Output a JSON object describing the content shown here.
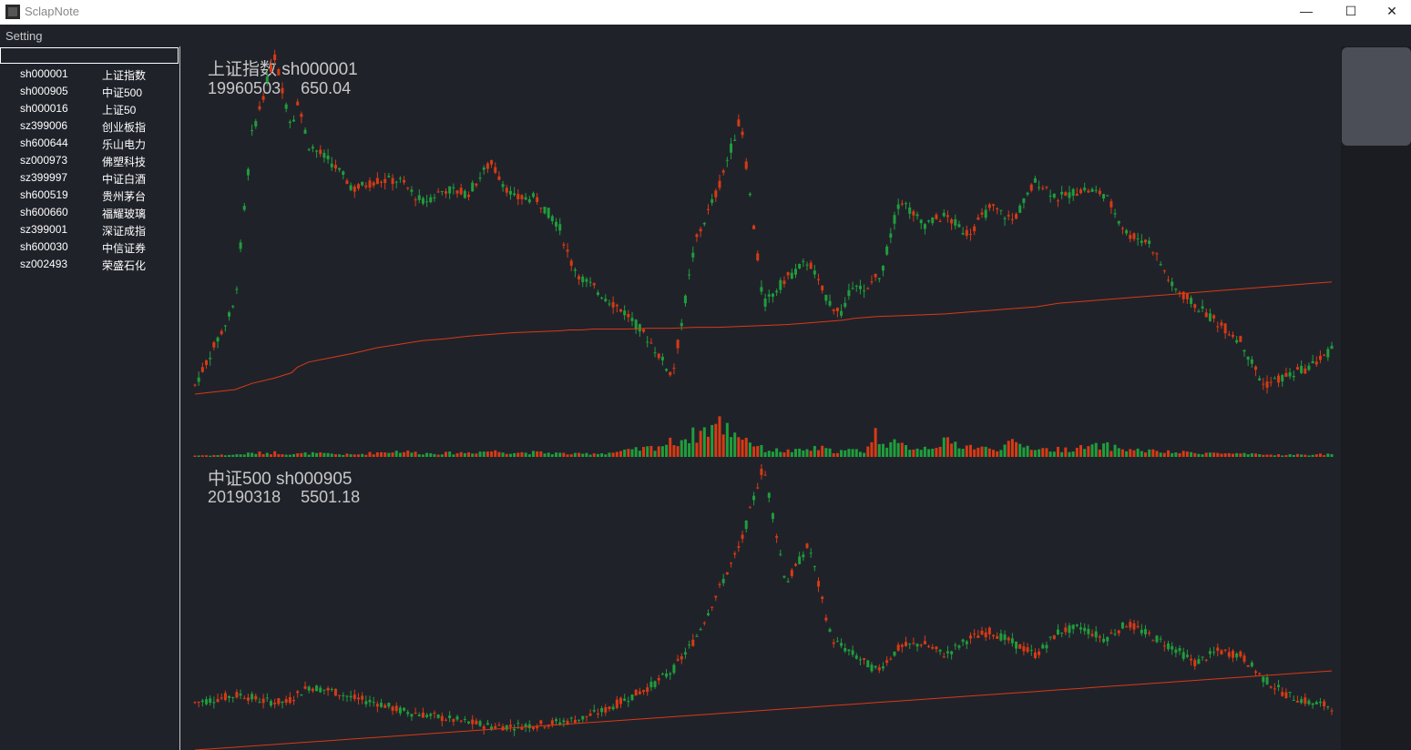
{
  "window": {
    "title": "SclapNote",
    "controls": [
      "—",
      "☐",
      "✕"
    ]
  },
  "menu": {
    "setting": "Setting"
  },
  "search": {
    "value": "",
    "placeholder": ""
  },
  "stocks": [
    {
      "code": "sh000001",
      "name": "上证指数"
    },
    {
      "code": "sh000905",
      "name": "中证500"
    },
    {
      "code": "sh000016",
      "name": "上证50"
    },
    {
      "code": "sz399006",
      "name": "创业板指"
    },
    {
      "code": "sh600644",
      "name": "乐山电力"
    },
    {
      "code": "sz000973",
      "name": "佛塑科技"
    },
    {
      "code": "sz399997",
      "name": "中证白酒"
    },
    {
      "code": "sh600519",
      "name": "贵州茅台"
    },
    {
      "code": "sh600660",
      "name": "福耀玻璃"
    },
    {
      "code": "sz399001",
      "name": "深证成指"
    },
    {
      "code": "sh600030",
      "name": "中信证券"
    },
    {
      "code": "sz002493",
      "name": "荣盛石化"
    }
  ],
  "colors": {
    "up": "#d83a14",
    "down": "#1f9e3c",
    "ma": "#d83a14",
    "text": "#c8c8c8",
    "background": "#20222a"
  },
  "charts": [
    {
      "title": "上证指数 sh000001",
      "date": "19960503",
      "price": "650.04"
    },
    {
      "title": "中证500 sh000905",
      "date": "20190318",
      "price": "5501.18"
    }
  ],
  "chart_data": [
    {
      "type": "candlestick",
      "title": "上证指数 sh000001",
      "x_label": "",
      "y_label": "",
      "x": [
        0,
        0.035,
        0.05,
        0.07,
        0.085,
        0.09,
        0.1,
        0.12,
        0.14,
        0.16,
        0.18,
        0.2,
        0.22,
        0.24,
        0.26,
        0.28,
        0.3,
        0.32,
        0.33,
        0.34,
        0.35,
        0.36,
        0.38,
        0.4,
        0.42,
        0.44,
        0.46,
        0.48,
        0.5,
        0.52,
        0.53,
        0.54,
        0.55,
        0.56,
        0.57,
        0.58,
        0.59,
        0.6,
        0.6,
        0.62,
        0.64,
        0.66,
        0.68,
        0.7,
        0.72,
        0.74,
        0.75,
        0.76,
        0.78,
        0.8,
        0.82,
        0.84,
        0.86,
        0.88,
        0.9,
        0.92,
        0.94,
        0.96,
        0.98,
        1.0
      ],
      "price": [
        10,
        100,
        290,
        380,
        300,
        330,
        280,
        260,
        230,
        240,
        240,
        215,
        230,
        225,
        260,
        220,
        220,
        190,
        150,
        130,
        120,
        110,
        90,
        60,
        20,
        170,
        230,
        310,
        100,
        130,
        140,
        150,
        120,
        100,
        90,
        130,
        110,
        140,
        115,
        220,
        190,
        200,
        180,
        210,
        195,
        240,
        230,
        220,
        230,
        225,
        180,
        170,
        120,
        100,
        80,
        60,
        10,
        20,
        30,
        50
      ],
      "ma": [
        0,
        5,
        12,
        18,
        24,
        30,
        36,
        41,
        46,
        52,
        56,
        60,
        62,
        65,
        67,
        69,
        70,
        71,
        72,
        72,
        73,
        73,
        73,
        74,
        74,
        75,
        75,
        76,
        77,
        78,
        79,
        80,
        81,
        82,
        83,
        85,
        86,
        87,
        87,
        88,
        89,
        90,
        92,
        94,
        96,
        98,
        100,
        102,
        104,
        106,
        108,
        110,
        112,
        114,
        116,
        118,
        120,
        122,
        124,
        126
      ],
      "volume": [
        2,
        3,
        5,
        6,
        4,
        4,
        5,
        4,
        3,
        6,
        8,
        5,
        5,
        6,
        8,
        6,
        6,
        5,
        4,
        4,
        5,
        5,
        8,
        12,
        20,
        30,
        45,
        30,
        10,
        8,
        8,
        10,
        12,
        8,
        8,
        9,
        8,
        35,
        25,
        15,
        12,
        20,
        15,
        10,
        18,
        12,
        10,
        10,
        12,
        15,
        10,
        8,
        6,
        6,
        5,
        4,
        3,
        3,
        3,
        4
      ]
    },
    {
      "type": "candlestick",
      "title": "中证500 sh000905",
      "x_label": "",
      "y_label": "",
      "x": [
        0,
        0.02,
        0.04,
        0.06,
        0.08,
        0.1,
        0.12,
        0.14,
        0.16,
        0.18,
        0.2,
        0.22,
        0.24,
        0.26,
        0.28,
        0.3,
        0.32,
        0.34,
        0.36,
        0.38,
        0.4,
        0.42,
        0.44,
        0.46,
        0.48,
        0.5,
        0.52,
        0.54,
        0.56,
        0.58,
        0.6,
        0.62,
        0.64,
        0.66,
        0.68,
        0.7,
        0.72,
        0.74,
        0.76,
        0.78,
        0.8,
        0.82,
        0.84,
        0.86,
        0.88,
        0.9,
        0.92,
        0.94,
        0.96,
        0.98,
        1.0
      ],
      "price": [
        0,
        5,
        10,
        2,
        0,
        20,
        15,
        5,
        0,
        -10,
        -15,
        -20,
        -25,
        -30,
        -30,
        -28,
        -25,
        -20,
        -10,
        5,
        20,
        40,
        80,
        140,
        200,
        300,
        150,
        200,
        80,
        60,
        40,
        70,
        75,
        60,
        80,
        90,
        75,
        60,
        90,
        95,
        80,
        100,
        85,
        70,
        50,
        65,
        60,
        30,
        10,
        0,
        -5
      ],
      "ma": [
        -60,
        -58,
        -56,
        -54,
        -52,
        -50,
        -48,
        -46,
        -44,
        -42,
        -40,
        -38,
        -36,
        -34,
        -32,
        -30,
        -28,
        -26,
        -24,
        -22,
        -20,
        -18,
        -16,
        -14,
        -12,
        -10,
        -8,
        -6,
        -4,
        -2,
        0,
        2,
        4,
        6,
        8,
        10,
        12,
        14,
        16,
        18,
        20,
        22,
        24,
        26,
        28,
        30,
        32,
        34,
        36,
        38,
        40
      ]
    }
  ]
}
